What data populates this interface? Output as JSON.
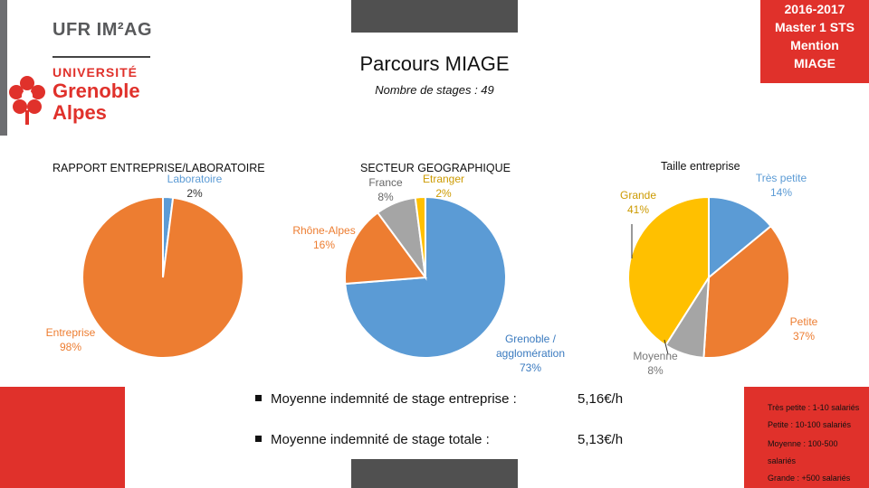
{
  "header": {
    "lines": [
      "2016-2017",
      "Master 1 STS",
      "Mention",
      "MIAGE"
    ],
    "title": "Parcours MIAGE",
    "subtitle": "Nombre de stages : 49"
  },
  "logo": {
    "ufr": "UFR IM²AG",
    "univ1": "UNIVERSITÉ",
    "univ2": "Grenoble",
    "univ3": "Alpes"
  },
  "colors": {
    "blue": "#5b9bd5",
    "orange": "#ed7d31",
    "gray": "#a5a5a5",
    "yellow": "#ffc000",
    "red": "#e0312b"
  },
  "chart_data": [
    {
      "type": "pie",
      "title": "RAPPORT ENTREPRISE/LABORATOIRE",
      "slices": [
        {
          "label": "Laboratoire",
          "percent_label": "2%",
          "value": 2,
          "color": "#5b9bd5"
        },
        {
          "label": "Entreprise",
          "percent_label": "98%",
          "value": 98,
          "color": "#ed7d31"
        }
      ]
    },
    {
      "type": "pie",
      "title": "SECTEUR GEOGRAPHIQUE",
      "slices": [
        {
          "label": "Grenoble / agglomération",
          "percent_label": "73%",
          "value": 73,
          "color": "#5b9bd5"
        },
        {
          "label": "Rhône-Alpes",
          "percent_label": "16%",
          "value": 16,
          "color": "#ed7d31"
        },
        {
          "label": "France",
          "percent_label": "8%",
          "value": 8,
          "color": "#a5a5a5"
        },
        {
          "label": "Etranger",
          "percent_label": "2%",
          "value": 2,
          "color": "#ffc000"
        }
      ]
    },
    {
      "type": "pie",
      "title": "Taille entreprise",
      "slices": [
        {
          "label": "Très petite",
          "percent_label": "14%",
          "value": 14,
          "color": "#5b9bd5"
        },
        {
          "label": "Petite",
          "percent_label": "37%",
          "value": 37,
          "color": "#ed7d31"
        },
        {
          "label": "Moyenne",
          "percent_label": "8%",
          "value": 8,
          "color": "#a5a5a5"
        },
        {
          "label": "Grande",
          "percent_label": "41%",
          "value": 41,
          "color": "#ffc000"
        }
      ]
    }
  ],
  "indemnites": [
    {
      "label": "Moyenne indemnité de stage entreprise :",
      "value": "5,16€/h"
    },
    {
      "label": "Moyenne indemnité de stage totale :",
      "value": "5,13€/h"
    }
  ],
  "size_legend": [
    "Très petite : 1-10 salariés",
    "Petite : 10-100 salariés",
    "Moyenne : 100-500",
    "salariés",
    "Grande : +500 salariés"
  ]
}
